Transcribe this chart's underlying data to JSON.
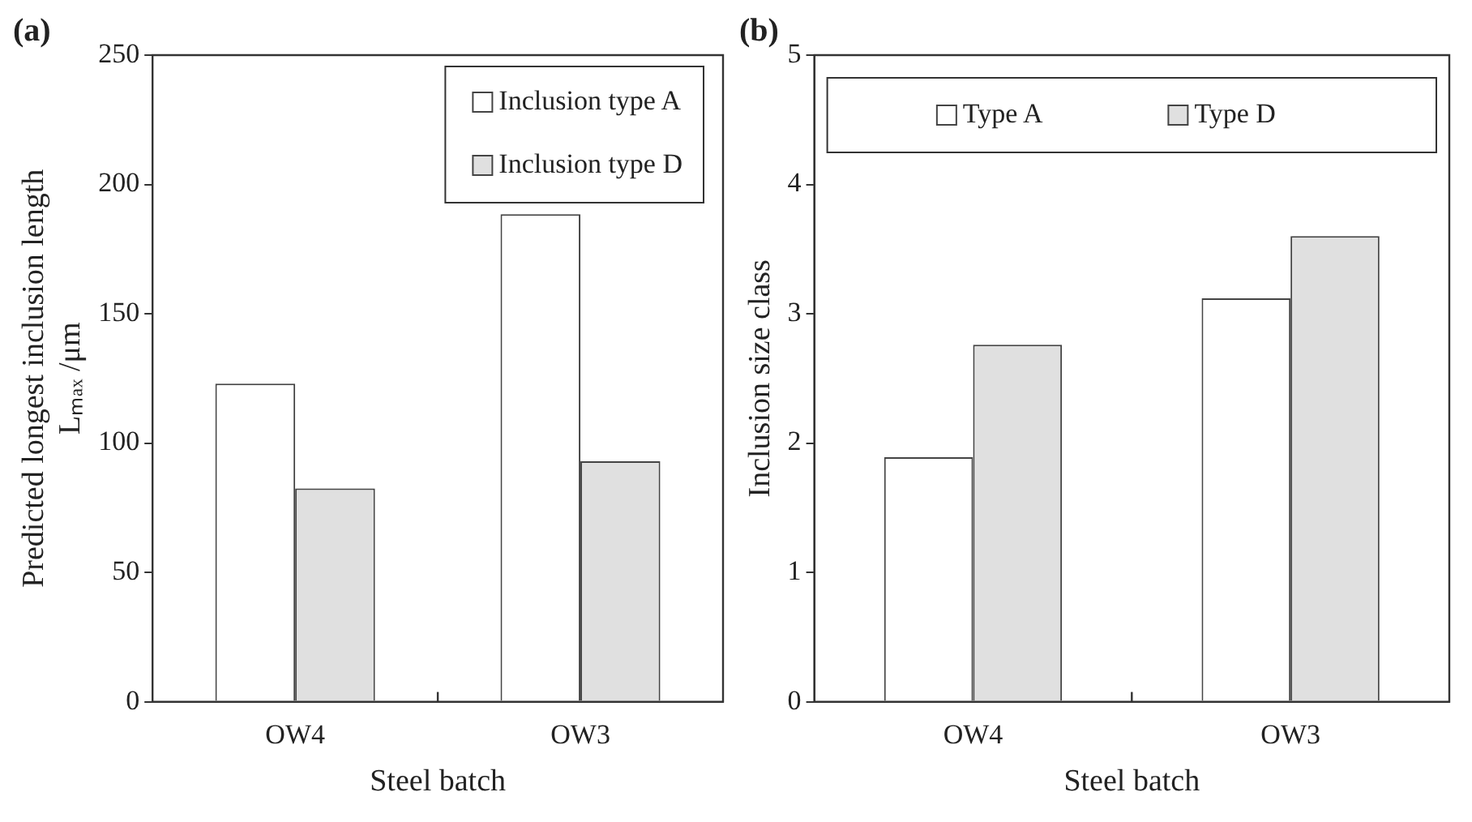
{
  "chart_data": [
    {
      "type": "bar",
      "title": "(a)",
      "xlabel": "Steel batch",
      "ylabel": "Predicted longest inclusion length\nLₘₐₓ /μm",
      "categories": [
        "OW4",
        "OW3"
      ],
      "series": [
        {
          "name": "Inclusion type A",
          "color": "#ffffff",
          "values": [
            123,
            188.5
          ]
        },
        {
          "name": "Inclusion type D",
          "color": "#e0e0e0",
          "values": [
            82.5,
            93
          ]
        }
      ],
      "ylim": [
        0,
        250
      ],
      "yticks": [
        0,
        50,
        100,
        150,
        200,
        250
      ],
      "grid": false,
      "legend": "top right"
    },
    {
      "type": "bar",
      "title": "(b)",
      "xlabel": "Steel batch",
      "ylabel": "Inclusion size class",
      "categories": [
        "OW4",
        "OW3"
      ],
      "series": [
        {
          "name": "Type A",
          "color": "#ffffff",
          "values": [
            1.89,
            3.12
          ]
        },
        {
          "name": "Type D",
          "color": "#e0e0e0",
          "values": [
            2.76,
            3.6
          ]
        }
      ],
      "ylim": [
        0,
        5
      ],
      "yticks": [
        0,
        1,
        2,
        3,
        4,
        5
      ],
      "grid": false,
      "legend": "top"
    }
  ]
}
